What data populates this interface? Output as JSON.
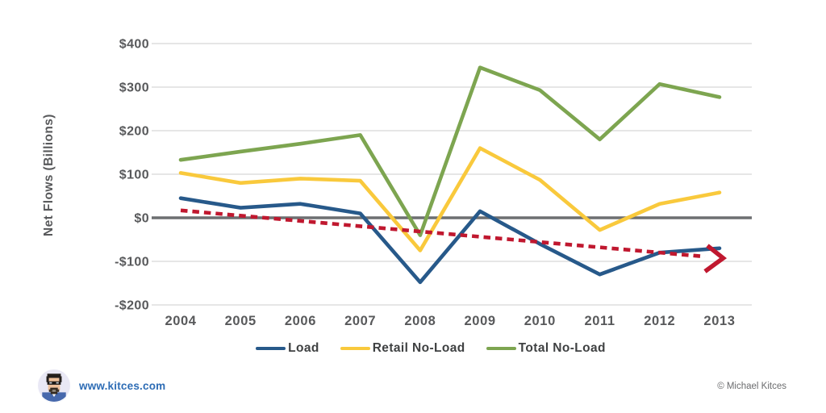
{
  "chart_data": {
    "type": "line",
    "title": "",
    "xlabel": "",
    "ylabel": "Net Flows (Billions)",
    "categories": [
      "2004",
      "2005",
      "2006",
      "2007",
      "2008",
      "2009",
      "2010",
      "2011",
      "2012",
      "2013"
    ],
    "series": [
      {
        "name": "Load",
        "color": "#27598a",
        "values": [
          45,
          23,
          32,
          10,
          -148,
          15,
          -60,
          -130,
          -80,
          -70
        ]
      },
      {
        "name": "Retail No-Load",
        "color": "#f9c93c",
        "values": [
          103,
          80,
          90,
          85,
          -75,
          160,
          87,
          -28,
          32,
          58
        ]
      },
      {
        "name": "Total No-Load",
        "color": "#7da550",
        "values": [
          133,
          152,
          170,
          190,
          -40,
          345,
          293,
          180,
          307,
          277
        ]
      }
    ],
    "trend": {
      "name": "load-trend-arrow",
      "color": "#c0182f",
      "style": "dashed",
      "start_value": 17,
      "end_value": -92
    },
    "y_ticks": [
      {
        "value": 400,
        "label": "$400"
      },
      {
        "value": 300,
        "label": "$300"
      },
      {
        "value": 200,
        "label": "$200"
      },
      {
        "value": 100,
        "label": "$100"
      },
      {
        "value": 0,
        "label": "$0"
      },
      {
        "value": -100,
        "label": "-$100"
      },
      {
        "value": -200,
        "label": "-$200"
      }
    ],
    "ylim": [
      -200,
      400
    ],
    "grid": true,
    "grid_color": "#d6d6d6",
    "zero_line_color": "#6d6f71",
    "axis_text_color": "#58595b",
    "legend_position": "bottom"
  },
  "footer": {
    "site_label": "www.kitces.com",
    "copyright": "© Michael Kitces"
  }
}
